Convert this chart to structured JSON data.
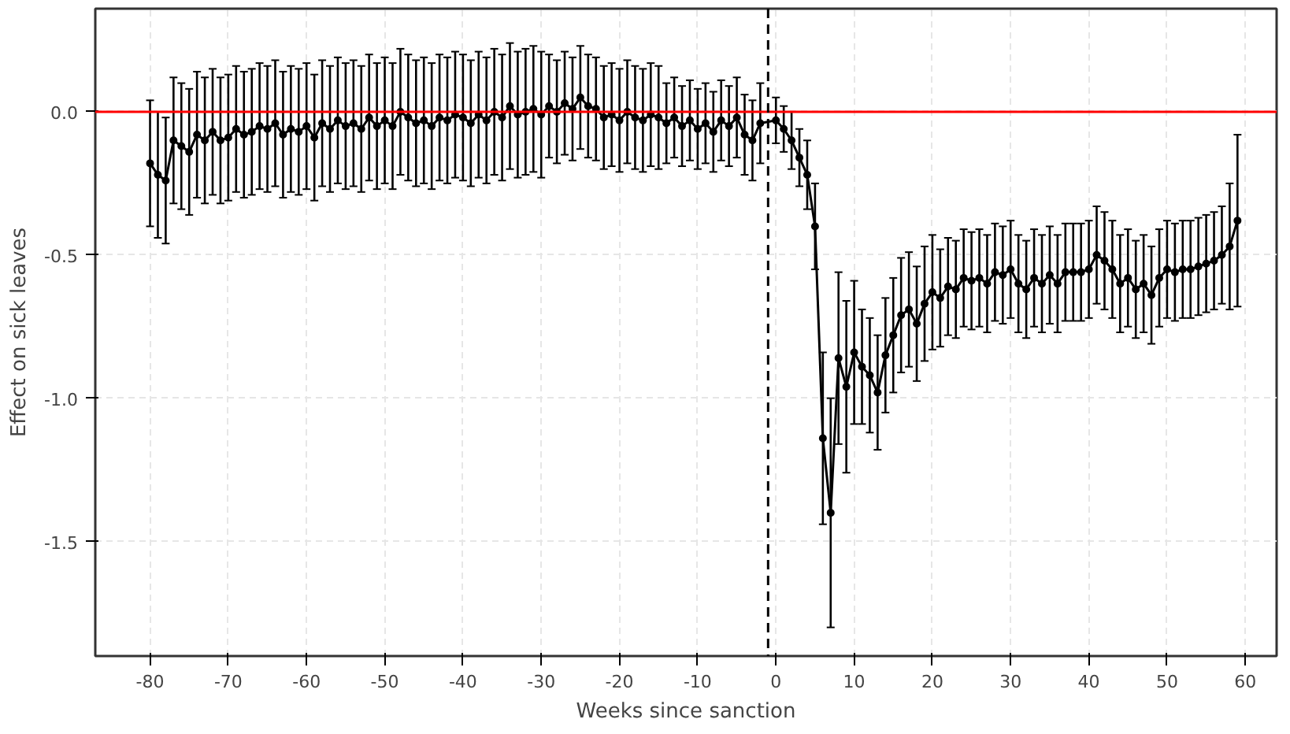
{
  "chart_data": {
    "type": "line",
    "xlabel": "Weeks since sanction",
    "ylabel": "Effect on sick leaves",
    "xlim": [
      -87,
      64
    ],
    "ylim": [
      -1.9,
      0.36
    ],
    "xticks": [
      -80,
      -70,
      -60,
      -50,
      -40,
      -30,
      -20,
      -10,
      0,
      10,
      20,
      30,
      40,
      50,
      60
    ],
    "yticks": [
      {
        "value": 0,
        "label": "0.0"
      },
      -0.5,
      {
        "value": -1,
        "label": "-1.0"
      },
      -1.5
    ],
    "grid": true,
    "marker": "circle",
    "line_style": "solid",
    "ref_lines": [
      {
        "axis": "y",
        "value": 0,
        "label": null,
        "color": "#ff0000",
        "line_style": "solid"
      },
      {
        "axis": "x",
        "value": -1,
        "label": null,
        "color": "#000000",
        "line_style": "dashed"
      }
    ],
    "series": [
      {
        "color": "#000000",
        "x": [
          -80,
          -79,
          -78,
          -77,
          -76,
          -75,
          -74,
          -73,
          -72,
          -71,
          -70,
          -69,
          -68,
          -67,
          -66,
          -65,
          -64,
          -63,
          -62,
          -61,
          -60,
          -59,
          -58,
          -57,
          -56,
          -55,
          -54,
          -53,
          -52,
          -51,
          -50,
          -49,
          -48,
          -47,
          -46,
          -45,
          -44,
          -43,
          -42,
          -41,
          -40,
          -39,
          -38,
          -37,
          -36,
          -35,
          -34,
          -33,
          -32,
          -31,
          -30,
          -29,
          -28,
          -27,
          -26,
          -25,
          -24,
          -23,
          -22,
          -21,
          -20,
          -19,
          -18,
          -17,
          -16,
          -15,
          -14,
          -13,
          -12,
          -11,
          -10,
          -9,
          -8,
          -7,
          -6,
          -5,
          -4,
          -3,
          -2,
          0,
          1,
          2,
          3,
          4,
          5,
          6,
          7,
          8,
          9,
          10,
          11,
          12,
          13,
          14,
          15,
          16,
          17,
          18,
          19,
          20,
          21,
          22,
          23,
          24,
          25,
          26,
          27,
          28,
          29,
          30,
          31,
          32,
          33,
          34,
          35,
          36,
          37,
          38,
          39,
          40,
          41,
          42,
          43,
          44,
          45,
          46,
          47,
          48,
          49,
          50,
          51,
          52,
          53,
          54,
          55,
          56,
          57,
          58,
          59
        ],
        "values": [
          -0.18,
          -0.22,
          -0.24,
          -0.1,
          -0.12,
          -0.14,
          -0.08,
          -0.1,
          -0.07,
          -0.1,
          -0.09,
          -0.06,
          -0.08,
          -0.07,
          -0.05,
          -0.06,
          -0.04,
          -0.08,
          -0.06,
          -0.07,
          -0.05,
          -0.09,
          -0.04,
          -0.06,
          -0.03,
          -0.05,
          -0.04,
          -0.06,
          -0.02,
          -0.05,
          -0.03,
          -0.05,
          0.0,
          -0.02,
          -0.04,
          -0.03,
          -0.05,
          -0.02,
          -0.03,
          -0.01,
          -0.02,
          -0.04,
          -0.01,
          -0.03,
          0.0,
          -0.02,
          0.02,
          -0.01,
          0.0,
          0.01,
          -0.01,
          0.02,
          0.0,
          0.03,
          0.01,
          0.05,
          0.02,
          0.01,
          -0.02,
          -0.01,
          -0.03,
          0.0,
          -0.02,
          -0.03,
          -0.01,
          -0.02,
          -0.04,
          -0.02,
          -0.05,
          -0.03,
          -0.06,
          -0.04,
          -0.07,
          -0.03,
          -0.05,
          -0.02,
          -0.08,
          -0.1,
          -0.04,
          -0.03,
          -0.06,
          -0.1,
          -0.16,
          -0.22,
          -0.4,
          -1.14,
          -1.4,
          -0.86,
          -0.96,
          -0.84,
          -0.89,
          -0.92,
          -0.98,
          -0.85,
          -0.78,
          -0.71,
          -0.69,
          -0.74,
          -0.67,
          -0.63,
          -0.65,
          -0.61,
          -0.62,
          -0.58,
          -0.59,
          -0.58,
          -0.6,
          -0.56,
          -0.57,
          -0.55,
          -0.6,
          -0.62,
          -0.58,
          -0.6,
          -0.57,
          -0.6,
          -0.56,
          -0.56,
          -0.56,
          -0.55,
          -0.5,
          -0.52,
          -0.55,
          -0.6,
          -0.58,
          -0.62,
          -0.6,
          -0.64,
          -0.58,
          -0.55,
          -0.56,
          -0.55,
          -0.55,
          -0.54,
          -0.53,
          -0.52,
          -0.5,
          -0.47,
          -0.38
        ],
        "errors": [
          0.22,
          0.22,
          0.22,
          0.22,
          0.22,
          0.22,
          0.22,
          0.22,
          0.22,
          0.22,
          0.22,
          0.22,
          0.22,
          0.22,
          0.22,
          0.22,
          0.22,
          0.22,
          0.22,
          0.22,
          0.22,
          0.22,
          0.22,
          0.22,
          0.22,
          0.22,
          0.22,
          0.22,
          0.22,
          0.22,
          0.22,
          0.22,
          0.22,
          0.22,
          0.22,
          0.22,
          0.22,
          0.22,
          0.22,
          0.22,
          0.22,
          0.22,
          0.22,
          0.22,
          0.22,
          0.22,
          0.22,
          0.22,
          0.22,
          0.22,
          0.22,
          0.18,
          0.18,
          0.18,
          0.18,
          0.18,
          0.18,
          0.18,
          0.18,
          0.18,
          0.18,
          0.18,
          0.18,
          0.18,
          0.18,
          0.18,
          0.14,
          0.14,
          0.14,
          0.14,
          0.14,
          0.14,
          0.14,
          0.14,
          0.14,
          0.14,
          0.14,
          0.14,
          0.14,
          0.08,
          0.08,
          0.1,
          0.1,
          0.12,
          0.15,
          0.3,
          0.4,
          0.3,
          0.3,
          0.25,
          0.2,
          0.2,
          0.2,
          0.2,
          0.2,
          0.2,
          0.2,
          0.2,
          0.2,
          0.2,
          0.17,
          0.17,
          0.17,
          0.17,
          0.17,
          0.17,
          0.17,
          0.17,
          0.17,
          0.17,
          0.17,
          0.17,
          0.17,
          0.17,
          0.17,
          0.17,
          0.17,
          0.17,
          0.17,
          0.17,
          0.17,
          0.17,
          0.17,
          0.17,
          0.17,
          0.17,
          0.17,
          0.17,
          0.17,
          0.17,
          0.17,
          0.17,
          0.17,
          0.17,
          0.17,
          0.17,
          0.17,
          0.22,
          0.3
        ]
      }
    ]
  }
}
